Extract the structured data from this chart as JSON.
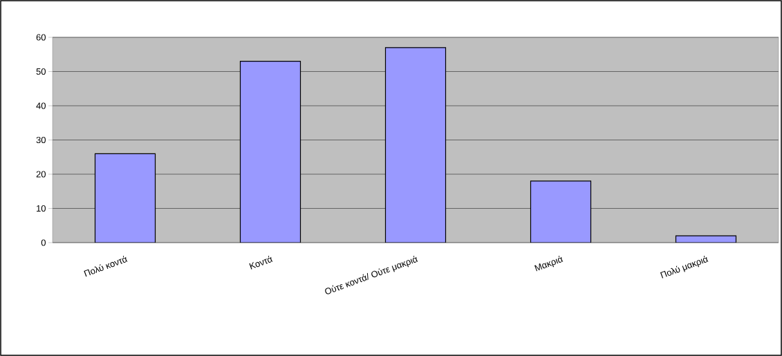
{
  "chart_data": {
    "type": "bar",
    "categories": [
      "Πολύ κοντά",
      "Κοντά",
      "Ούτε κοντά/ Ούτε μακριά",
      "Μακριά",
      "Πολύ μακριά"
    ],
    "values": [
      26,
      53,
      57,
      18,
      2
    ],
    "color": "#9999ff",
    "ylim": [
      0,
      60
    ],
    "yticks": [
      0,
      10,
      20,
      30,
      40,
      50,
      60
    ],
    "grid": "y"
  }
}
